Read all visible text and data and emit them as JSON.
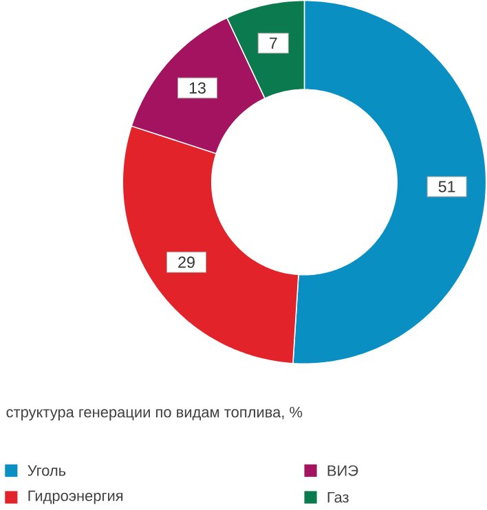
{
  "chart_data": {
    "type": "donut",
    "title": "структура генерации по видам топлива, %",
    "categories": [
      "Уголь",
      "Гидроэнергия",
      "ВИЭ",
      "Газ"
    ],
    "values": [
      51,
      29,
      13,
      7
    ],
    "colors": [
      "#0a8fc2",
      "#e3232a",
      "#a3135f",
      "#0c7a4f"
    ],
    "data_labels": true,
    "legend": "bottom"
  }
}
